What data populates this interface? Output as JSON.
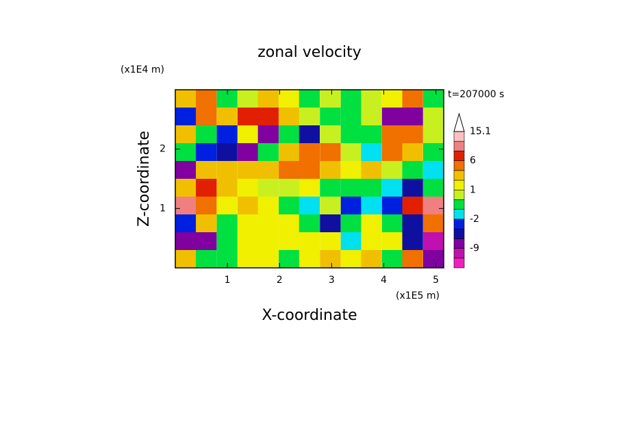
{
  "chart_data": {
    "type": "contour",
    "title": "zonal velocity",
    "time_label": "t=207000 s",
    "xlabel": "X-coordinate",
    "ylabel": "Z-coordinate",
    "x_unit": "(x1E5 m)",
    "y_unit": "(x1E4 m)",
    "xlim": [
      0,
      5.15
    ],
    "ylim": [
      0,
      3
    ],
    "xticks": [
      1,
      2,
      3,
      4,
      5
    ],
    "yticks": [
      1,
      2
    ],
    "x": [
      0.2,
      0.59,
      0.99,
      1.39,
      1.78,
      2.18,
      2.57,
      2.97,
      3.37,
      3.76,
      4.16,
      4.55,
      4.95
    ],
    "z": [
      2.85,
      2.55,
      2.25,
      1.95,
      1.65,
      1.35,
      1.05,
      0.75,
      0.45,
      0.15
    ],
    "values": [
      [
        3,
        5,
        -1,
        0.5,
        2,
        1,
        -0.5,
        0.5,
        -1,
        0.5,
        1,
        4,
        -1
      ],
      [
        -3,
        4,
        3,
        7,
        8,
        3,
        0.5,
        -1,
        -1,
        0.5,
        -7,
        -7,
        0.5
      ],
      [
        2,
        -1,
        -4,
        1,
        -7,
        -1,
        -6,
        0.5,
        -1,
        -1,
        5,
        4,
        0.5
      ],
      [
        -1,
        -4,
        -6,
        -7,
        -1,
        3,
        5,
        5,
        0.5,
        -2,
        5,
        3,
        -1
      ],
      [
        -8,
        2,
        3,
        2,
        2,
        5,
        4,
        3,
        1.5,
        2,
        0.5,
        -1,
        -2
      ],
      [
        3,
        7,
        2,
        1.5,
        0.5,
        0.5,
        1.5,
        -0.5,
        -0.5,
        -1,
        -2,
        -5,
        -1
      ],
      [
        9,
        5,
        1.5,
        2,
        1.5,
        -0.5,
        -2,
        0.5,
        -3,
        -2,
        -4,
        8,
        10
      ],
      [
        -3,
        2,
        -1,
        1.5,
        1.5,
        1.5,
        -1,
        -6,
        -1,
        1.5,
        -1,
        -6,
        5
      ],
      [
        -7,
        -8,
        -1,
        1.5,
        1.5,
        1.5,
        1.5,
        1.5,
        -2,
        1.5,
        1.5,
        -5,
        -10
      ],
      [
        2,
        -1,
        -0.5,
        1.5,
        1.5,
        -0.5,
        1.5,
        3,
        1.5,
        2,
        -1,
        4,
        -9
      ]
    ],
    "levels": [
      -15,
      -12,
      -9,
      -6,
      -4,
      -2,
      -1,
      0,
      1,
      2,
      4,
      6,
      9,
      12,
      15.1
    ],
    "colors": [
      "#f020c0",
      "#c010b0",
      "#8000a0",
      "#1010a0",
      "#0020e0",
      "#00e0f0",
      "#00e040",
      "#c8f020",
      "#f0f000",
      "#f0c000",
      "#f07000",
      "#e02000",
      "#f08080",
      "#f8c0c0"
    ],
    "over_color": "#ffffff",
    "cbar_ticks": [
      15.1,
      6,
      1,
      -2,
      -9
    ]
  }
}
